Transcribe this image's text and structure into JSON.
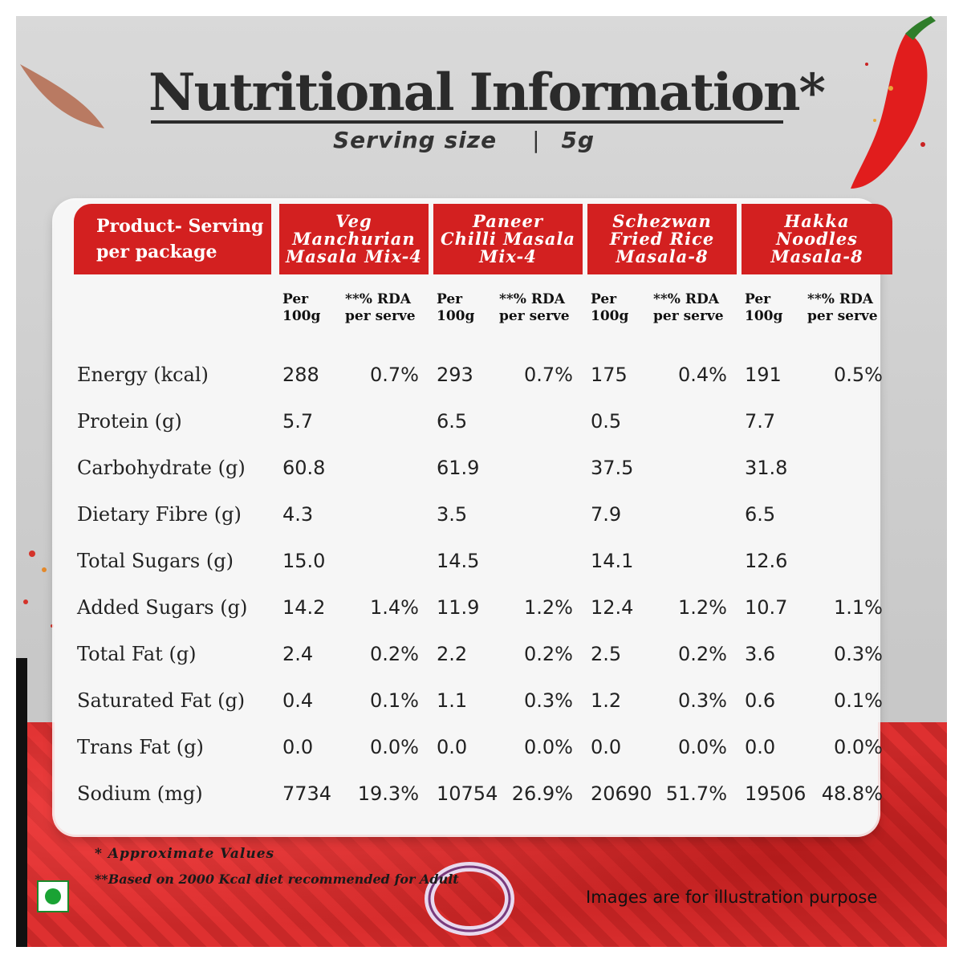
{
  "title": "Nutritional Information",
  "title_mark": "*",
  "serving": {
    "label": "Serving size",
    "separator": "|",
    "value": "5g"
  },
  "header_first": "Product- Serving\nper package",
  "products": [
    {
      "name": "Veg\nManchurian\nMasala Mix-4"
    },
    {
      "name": "Paneer\nChilli Masala\nMix-4"
    },
    {
      "name": "Schezwan\nFried Rice\nMasala-8"
    },
    {
      "name": "Hakka\nNoodles\nMasala-8"
    }
  ],
  "subheaders": {
    "per": "Per\n100g",
    "rda": "**% RDA\nper serve"
  },
  "rows": [
    {
      "label": "Energy (kcal)",
      "values": [
        [
          "288",
          "0.7%"
        ],
        [
          "293",
          "0.7%"
        ],
        [
          "175",
          "0.4%"
        ],
        [
          "191",
          "0.5%"
        ]
      ]
    },
    {
      "label": "Protein (g)",
      "values": [
        [
          "5.7",
          ""
        ],
        [
          "6.5",
          ""
        ],
        [
          "0.5",
          ""
        ],
        [
          "7.7",
          ""
        ]
      ]
    },
    {
      "label": "Carbohydrate (g)",
      "values": [
        [
          "60.8",
          ""
        ],
        [
          "61.9",
          ""
        ],
        [
          "37.5",
          ""
        ],
        [
          "31.8",
          ""
        ]
      ]
    },
    {
      "label": "Dietary Fibre (g)",
      "values": [
        [
          "4.3",
          ""
        ],
        [
          "3.5",
          ""
        ],
        [
          "7.9",
          ""
        ],
        [
          "6.5",
          ""
        ]
      ]
    },
    {
      "label": "Total Sugars (g)",
      "values": [
        [
          "15.0",
          ""
        ],
        [
          "14.5",
          ""
        ],
        [
          "14.1",
          ""
        ],
        [
          "12.6",
          ""
        ]
      ]
    },
    {
      "label": "Added Sugars (g)",
      "values": [
        [
          "14.2",
          "1.4%"
        ],
        [
          "11.9",
          "1.2%"
        ],
        [
          "12.4",
          "1.2%"
        ],
        [
          "10.7",
          "1.1%"
        ]
      ]
    },
    {
      "label": "Total Fat (g)",
      "values": [
        [
          "2.4",
          "0.2%"
        ],
        [
          "2.2",
          "0.2%"
        ],
        [
          "2.5",
          "0.2%"
        ],
        [
          "3.6",
          "0.3%"
        ]
      ]
    },
    {
      "label": "Saturated Fat (g)",
      "values": [
        [
          "0.4",
          "0.1%"
        ],
        [
          "1.1",
          "0.3%"
        ],
        [
          "1.2",
          "0.3%"
        ],
        [
          "0.6",
          "0.1%"
        ]
      ]
    },
    {
      "label": "Trans Fat (g)",
      "values": [
        [
          "0.0",
          "0.0%"
        ],
        [
          "0.0",
          "0.0%"
        ],
        [
          "0.0",
          "0.0%"
        ],
        [
          "0.0",
          "0.0%"
        ]
      ]
    },
    {
      "label": "Sodium (mg)",
      "values": [
        [
          "7734",
          "19.3%"
        ],
        [
          "10754",
          "26.9%"
        ],
        [
          "20690",
          "51.7%"
        ],
        [
          "19506",
          "48.8%"
        ]
      ]
    }
  ],
  "footnotes": {
    "approx": "* Approximate Values",
    "based": "**Based on 2000 Kcal diet recommended for Adult",
    "illustration": "Images are for illustration purpose"
  },
  "colors": {
    "header_red": "#d32020",
    "veg_green": "#1aa334"
  }
}
